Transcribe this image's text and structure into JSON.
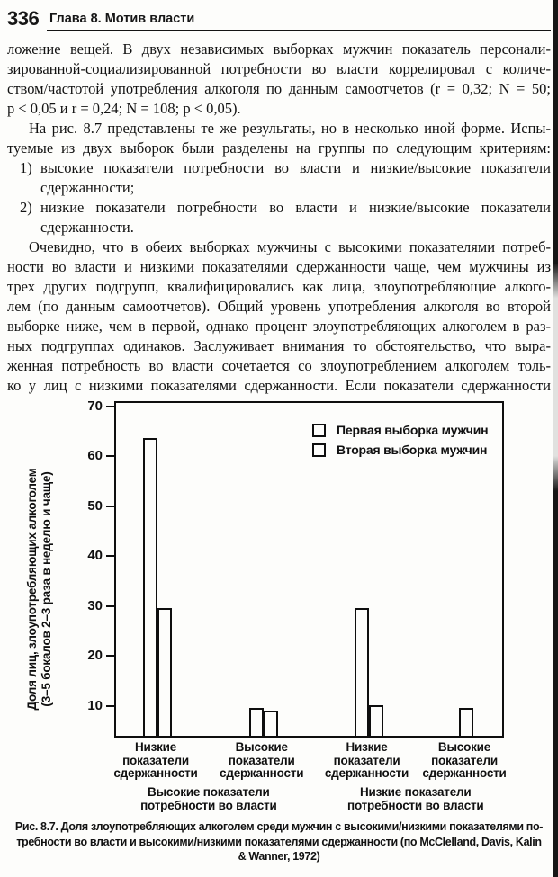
{
  "page": {
    "number": "336",
    "running_head": "Глава 8. Мотив власти"
  },
  "body": {
    "p1_lines": [
      "ложение вещей. В двух независимых выборках мужчин показатель персонали-",
      "зированной-социализированной потребности во власти коррелировал с количе-",
      "ством/частотой употребления алкоголя по данным самоотчетов (r = 0,32; N = 50;",
      "p < 0,05 и r = 0,24; N = 108; p < 0,05)."
    ],
    "p2_lines": [
      "На рис. 8.7 представлены те же результаты, но в несколько иной форме. Испы-",
      "туемые из двух выборок были разделены на группы по следующим критериям:"
    ],
    "list": [
      {
        "num": "1)",
        "lines": [
          "высокие показатели потребности во власти и низкие/высокие показатели",
          "сдержанности;"
        ]
      },
      {
        "num": "2)",
        "lines": [
          "низкие показатели потребности во власти и низкие/высокие показатели",
          "сдержанности."
        ]
      }
    ],
    "p3_lines": [
      "Очевидно, что в обеих выборках мужчины с высокими показателями потреб-",
      "ности во власти и низкими показателями сдержанности чаще, чем мужчины из",
      "трех других подгрупп, квалифицировались как лица, злоупотребляющие алкого-",
      "лем (по данным самоотчетов). Общий уровень употребления алкоголя во второй",
      "выборке ниже, чем в первой, однако процент злоупотребляющих алкоголем в раз-",
      "ных подгруппах одинаков. Заслуживает внимания то обстоятельство, что выра-",
      "женная потребность во власти сочетается со злоупотреблением алкоголем толь-",
      "ко у лиц с низкими показателями сдержанности. Если показатели сдержанности"
    ]
  },
  "chart_data": {
    "type": "bar",
    "title": "",
    "ylabel_line1": "Доля лиц, злоупотребляющих алкоголем",
    "ylabel_line2": "(3–5 бокалов 2–3 раза в неделю и чаще)",
    "yticks": [
      10,
      20,
      30,
      40,
      50,
      60,
      70
    ],
    "ylim": [
      4.4,
      71
    ],
    "grid": false,
    "legend_position": "top-right-inside",
    "legend": [
      "Первая выборка мужчин",
      "Вторая выборка мужчин"
    ],
    "categories": [
      "Низкие показатели сдержанности",
      "Высокие показатели сдержанности",
      "Низкие показатели сдержанности",
      "Высокие показатели сдержанности"
    ],
    "groups": [
      {
        "label_lines": [
          "Низкие",
          "показатели",
          "сдержанности"
        ],
        "values": [
          64,
          30
        ]
      },
      {
        "label_lines": [
          "Высокие",
          "показатели",
          "сдержанности"
        ],
        "values": [
          10,
          9.5
        ]
      },
      {
        "label_lines": [
          "Низкие",
          "показатели",
          "сдержанности"
        ],
        "values": [
          30,
          10.5
        ]
      },
      {
        "label_lines": [
          "Высокие",
          "показатели",
          "сдержанности"
        ],
        "values": [
          null,
          10
        ]
      }
    ],
    "series_names": [
      "Первая выборка мужчин",
      "Вторая выборка мужчин"
    ],
    "supergroups": [
      {
        "lines": [
          "Высокие показатели",
          "потребности во власти"
        ],
        "groups": [
          0,
          1
        ]
      },
      {
        "lines": [
          "Низкие показатели",
          "потребности во власти"
        ],
        "groups": [
          2,
          3
        ]
      }
    ]
  },
  "caption": {
    "label": "Рис. 8.7.",
    "line1_rest": "Доля злоупотребляющих алкоголем среди мужчин с высокими/низкими показателями по-",
    "line2": "требности во власти и высокими/низкими показателями сдержанности (по McClelland, Davis, Kalin",
    "line3": "& Wanner, 1972)"
  }
}
